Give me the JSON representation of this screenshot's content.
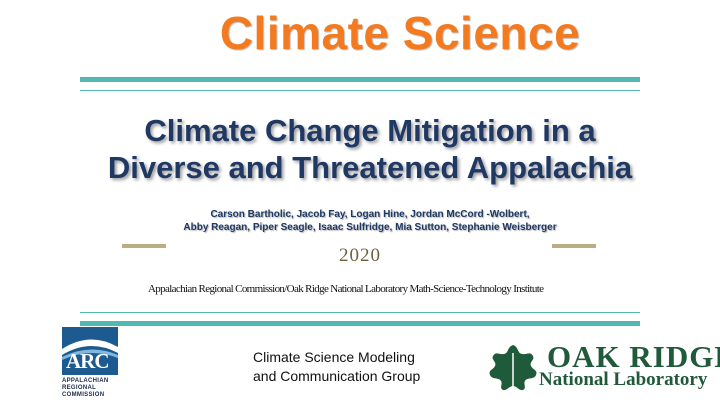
{
  "header": {
    "title": "Climate Science"
  },
  "slide": {
    "title_line1": "Climate Change Mitigation in a",
    "title_line2": "Diverse and Threatened Appalachia",
    "authors_line1": "Carson Bartholic, Jacob Fay, Logan Hine, Jordan McCord -Wolbert,",
    "authors_line2": "Abby Reagan, Piper Seagle, Isaac Sulfridge, Mia Sutton, Stephanie Weisberger",
    "year": "2020",
    "affiliation": "Appalachian Regional Commission/Oak Ridge National Laboratory Math-Science-Technology Institute",
    "group_line1": "Climate Science Modeling",
    "group_line2": "and Communication Group"
  },
  "logos": {
    "arc_abbrev": "ARC",
    "arc_line1": "APPALACHIAN",
    "arc_line2": "REGIONAL",
    "arc_line3": "COMMISSION",
    "ornl_name": "OAK RIDGE",
    "ornl_lab": "National Laboratory"
  },
  "colors": {
    "accent_orange": "#f47a20",
    "title_navy": "#1f3864",
    "rule_teal": "#52b9b1",
    "bar_tan": "#b9ad81",
    "ornl_green": "#1f5a3a",
    "arc_blue": "#1c5a8f"
  }
}
